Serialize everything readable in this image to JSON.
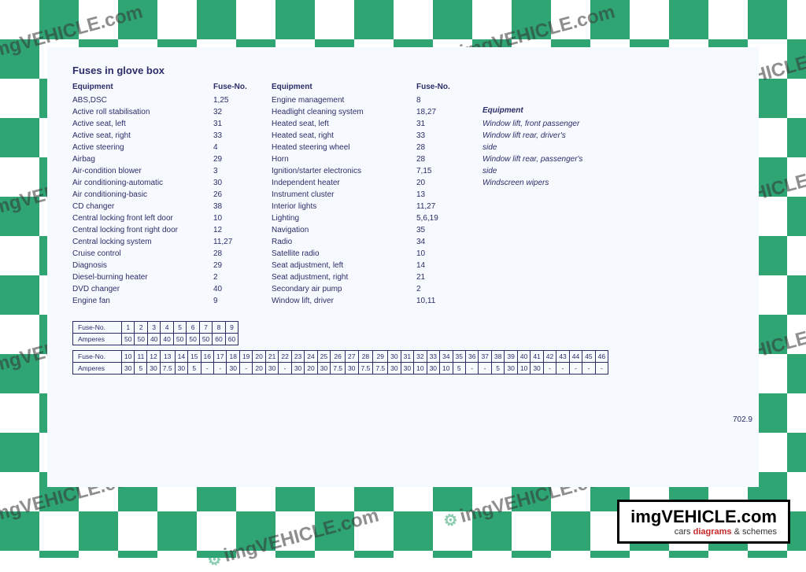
{
  "title": "Fuses in glove box",
  "headers": {
    "equipment": "Equipment",
    "fuseNo": "Fuse-No.",
    "amperes": "Amperes"
  },
  "col1": [
    {
      "eq": "ABS,DSC",
      "no": "1,25"
    },
    {
      "eq": "Active roll stabilisation",
      "no": "32"
    },
    {
      "eq": "Active seat, left",
      "no": "31"
    },
    {
      "eq": "Active seat, right",
      "no": "33"
    },
    {
      "eq": "Active steering",
      "no": "4"
    },
    {
      "eq": "Airbag",
      "no": "29"
    },
    {
      "eq": "Air-condition blower",
      "no": "3"
    },
    {
      "eq": "Air conditioning-automatic",
      "no": "30"
    },
    {
      "eq": "Air conditioning-basic",
      "no": "26"
    },
    {
      "eq": "CD changer",
      "no": "38"
    },
    {
      "eq": "Central locking front left door",
      "no": "10"
    },
    {
      "eq": "Central locking front right door",
      "no": "12"
    },
    {
      "eq": "Central locking system",
      "no": "11,27"
    },
    {
      "eq": "Cruise control",
      "no": "28"
    },
    {
      "eq": "Diagnosis",
      "no": "29"
    },
    {
      "eq": "Diesel-burning heater",
      "no": "2"
    },
    {
      "eq": "DVD changer",
      "no": "40"
    },
    {
      "eq": "Engine fan",
      "no": "9"
    }
  ],
  "col2": [
    {
      "eq": "Engine management",
      "no": "8"
    },
    {
      "eq": "Headlight cleaning system",
      "no": "18,27"
    },
    {
      "eq": "Heated seat, left",
      "no": "31"
    },
    {
      "eq": "Heated seat, right",
      "no": "33"
    },
    {
      "eq": "Heated steering wheel",
      "no": "28"
    },
    {
      "eq": "Horn",
      "no": "28"
    },
    {
      "eq": "Ignition/starter electronics",
      "no": "7,15"
    },
    {
      "eq": "Independent heater",
      "no": "20"
    },
    {
      "eq": "Instrument cluster",
      "no": "13"
    },
    {
      "eq": "Interior lights",
      "no": "11,27"
    },
    {
      "eq": "Lighting",
      "no": "5,6,19"
    },
    {
      "eq": "Navigation",
      "no": "35"
    },
    {
      "eq": "Radio",
      "no": "34"
    },
    {
      "eq": "Satellite radio",
      "no": "10"
    },
    {
      "eq": "Seat adjustment, left",
      "no": "14"
    },
    {
      "eq": "Seat adjustment, right",
      "no": "21"
    },
    {
      "eq": "Secondary air pump",
      "no": "2"
    },
    {
      "eq": "Window lift, driver",
      "no": "10,11"
    }
  ],
  "col3": [
    {
      "eq": "Window lift, front passenger",
      "no": ""
    },
    {
      "eq": "Window lift rear, driver's",
      "no": ""
    },
    {
      "eq": "side",
      "no": ""
    },
    {
      "eq": "Window lift rear, passenger's",
      "no": ""
    },
    {
      "eq": "side",
      "no": ""
    },
    {
      "eq": "Windscreen wipers",
      "no": ""
    }
  ],
  "ampTable1": {
    "fuseNo": [
      "1",
      "2",
      "3",
      "4",
      "5",
      "6",
      "7",
      "8",
      "9"
    ],
    "amperes": [
      "50",
      "50",
      "40",
      "40",
      "50",
      "50",
      "50",
      "60",
      "60"
    ]
  },
  "ampTable2": {
    "fuseNo": [
      "10",
      "11",
      "12",
      "13",
      "14",
      "15",
      "16",
      "17",
      "18",
      "19",
      "20",
      "21",
      "22",
      "23",
      "24",
      "25",
      "26",
      "27",
      "28",
      "29",
      "30",
      "31",
      "32",
      "33",
      "34",
      "35",
      "36",
      "37",
      "38",
      "39",
      "40",
      "41",
      "42",
      "43",
      "44",
      "45",
      "46"
    ],
    "amperes": [
      "30",
      "5",
      "30",
      "7.5",
      "30",
      "5",
      "-",
      "-",
      "30",
      "-",
      "20",
      "30",
      "-",
      "30",
      "20",
      "30",
      "7.5",
      "30",
      "7.5",
      "7.5",
      "30",
      "30",
      "10",
      "30",
      "10",
      "5",
      "-",
      "-",
      "5",
      "30",
      "10",
      "30",
      "-",
      "-",
      "-",
      "-",
      "-"
    ]
  },
  "pageRef": "702.9",
  "brand": {
    "line1a": "imgVEHICLE",
    "line1b": ".com",
    "line2a": "cars ",
    "line2b": "diagrams",
    "line2c": " & schemes"
  },
  "watermark": "imgVEHICLE.com"
}
